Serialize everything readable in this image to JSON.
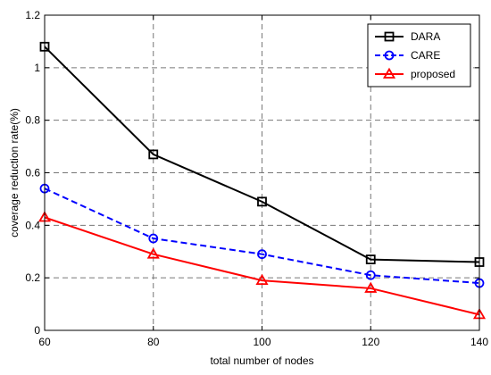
{
  "chart_data": {
    "type": "line",
    "title": "",
    "xlabel": "total number of nodes",
    "ylabel": "coverage reduction rate(%)",
    "x": [
      60,
      80,
      100,
      120,
      140
    ],
    "xlim": [
      60,
      140
    ],
    "ylim": [
      0,
      1.2
    ],
    "xticks": [
      "60",
      "80",
      "100",
      "120",
      "140"
    ],
    "yticks": [
      "0",
      "0.2",
      "0.4",
      "0.6",
      "0.8",
      "1",
      "1.2"
    ],
    "grid": true,
    "legend_position": "top-right",
    "series": [
      {
        "name": "DARA",
        "values": [
          1.08,
          0.67,
          0.49,
          0.27,
          0.26
        ],
        "color": "#000000",
        "marker": "square",
        "dash": "solid"
      },
      {
        "name": "CARE",
        "values": [
          0.54,
          0.35,
          0.29,
          0.21,
          0.18
        ],
        "color": "#0000ff",
        "marker": "circle",
        "dash": "dashed"
      },
      {
        "name": "proposed",
        "values": [
          0.43,
          0.29,
          0.19,
          0.16,
          0.06
        ],
        "color": "#ff0000",
        "marker": "triangle",
        "dash": "solid"
      }
    ]
  }
}
